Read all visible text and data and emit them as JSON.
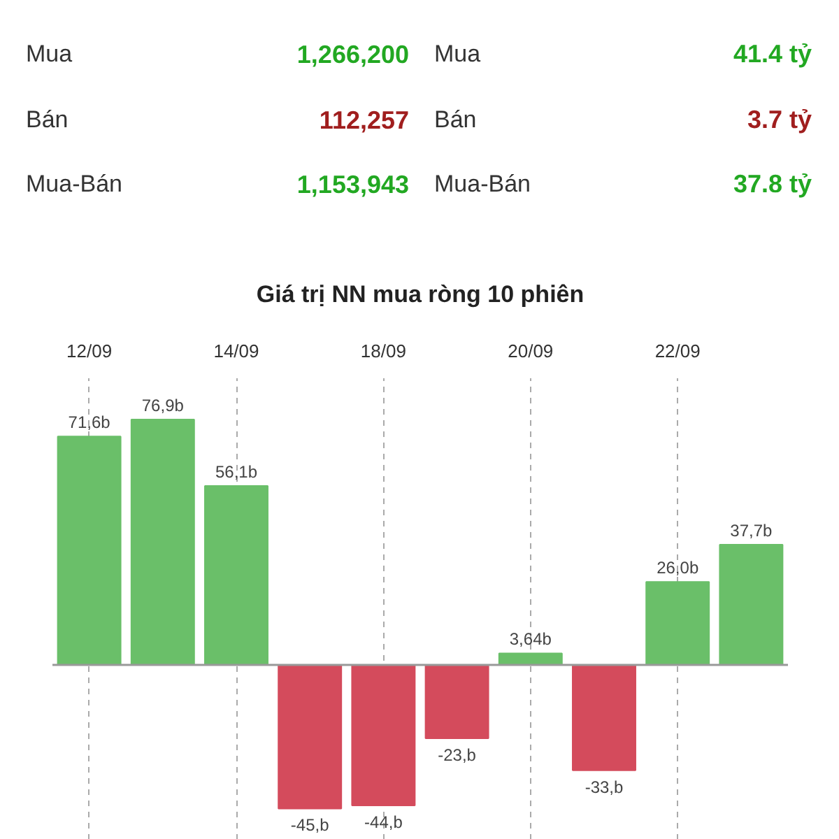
{
  "chart_data": [
    {
      "type": "other",
      "annotations": [
        "Mua",
        "1,266,200",
        "Mua",
        "41.4 tỷ",
        "Bán",
        "112,257",
        "Bán",
        "3.7 tỷ",
        "Mua-Bán",
        "1,153,943",
        "Mua-Bán",
        "37.8 tỷ"
      ],
      "colors": [
        "#333333",
        "#22a822",
        "#333333",
        "#22a822",
        "#333333",
        "#a01e1e",
        "#333333",
        "#a01e1e",
        "#333333",
        "#22a822",
        "#333333",
        "#22a822"
      ]
    },
    {
      "type": "bar",
      "title": "Giá trị NN mua ròng 10 phiên",
      "categories": [
        "12/09",
        null,
        "14/09",
        null,
        "18/09",
        null,
        "20/09",
        null,
        "22/09",
        null
      ],
      "values": [
        71.6,
        76.9,
        56.1,
        -45,
        -44,
        -23,
        3.64,
        -33,
        26.0,
        37.7
      ],
      "colors": [
        "#6abf69",
        "#6abf69",
        "#6abf69",
        "#d44b5c",
        "#d44b5c",
        "#d44b5c",
        "#6abf69",
        "#d44b5c",
        "#6abf69",
        "#6abf69"
      ],
      "value_labels": [
        "71,6b",
        "76,9b",
        "56,1b",
        "-45,b",
        "-44,b",
        "-23,b",
        "3,64b",
        "-33,b",
        "26,0b",
        "37,7b"
      ],
      "grid": "x",
      "tick_labels": "x"
    }
  ]
}
